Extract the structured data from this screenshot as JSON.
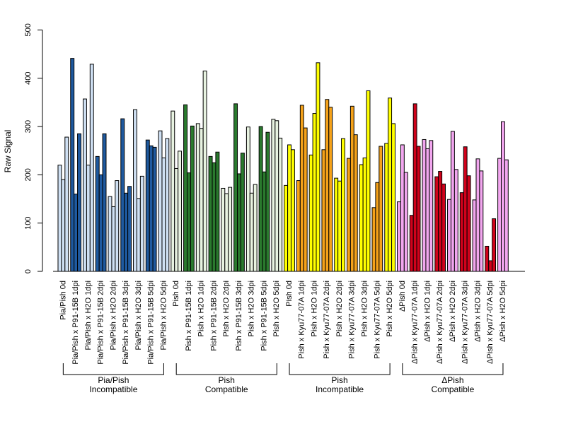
{
  "chart_data": {
    "type": "bar",
    "ylabel": "Raw Signal",
    "ylim": [
      0,
      500
    ],
    "yticks": [
      0,
      100,
      200,
      300,
      400,
      500
    ],
    "grid": false,
    "bar_outline": "#000000",
    "palette": {
      "light_blue": "#cfe0f3",
      "dark_blue": "#1f5aa0",
      "light_green": "#e8f3e1",
      "dark_green": "#2a7a2e",
      "yellow": "#ffff00",
      "orange": "#f5a21a",
      "pink": "#f2a6ef",
      "red": "#d0021b"
    },
    "categories": [
      {
        "label": "Pia/Pish 0d",
        "values": [
          220,
          190,
          278
        ],
        "colors": [
          "light_blue",
          "light_blue",
          "light_blue"
        ]
      },
      {
        "label": "Pia/Pish x P91-15B 1dpi",
        "values": [
          441,
          160,
          285
        ],
        "colors": [
          "dark_blue",
          "dark_blue",
          "dark_blue"
        ]
      },
      {
        "label": "Pia/Pish x H2O 1dpi",
        "values": [
          357,
          220,
          429
        ],
        "colors": [
          "light_blue",
          "light_blue",
          "light_blue"
        ]
      },
      {
        "label": "Pia/Pish x P91-15B 2dpi",
        "values": [
          238,
          200,
          285
        ],
        "colors": [
          "dark_blue",
          "dark_blue",
          "dark_blue"
        ]
      },
      {
        "label": "Pia/Pish x H2O 2dpi",
        "values": [
          155,
          134,
          188
        ],
        "colors": [
          "light_blue",
          "light_blue",
          "light_blue"
        ]
      },
      {
        "label": "Pia/Pish x P91-15B 3dpi",
        "values": [
          316,
          162,
          176
        ],
        "colors": [
          "dark_blue",
          "dark_blue",
          "dark_blue"
        ]
      },
      {
        "label": "Pia/Pish x H2O 3dpi",
        "values": [
          335,
          151,
          197
        ],
        "colors": [
          "light_blue",
          "light_blue",
          "light_blue"
        ]
      },
      {
        "label": "Pia/Pish x P91-15B 5dpi",
        "values": [
          272,
          260,
          257
        ],
        "colors": [
          "dark_blue",
          "dark_blue",
          "dark_blue"
        ]
      },
      {
        "label": "Pia/Pish x H2O 5dpi",
        "values": [
          291,
          235,
          275
        ],
        "colors": [
          "light_blue",
          "light_blue",
          "light_blue"
        ]
      },
      {
        "label": "Pish 0d",
        "values": [
          332,
          213,
          249
        ],
        "colors": [
          "light_green",
          "light_green",
          "light_green"
        ]
      },
      {
        "label": "Pish x P91-15B 1dpi",
        "values": [
          345,
          204,
          301
        ],
        "colors": [
          "dark_green",
          "dark_green",
          "dark_green"
        ]
      },
      {
        "label": "Pish x H2O 1dpi",
        "values": [
          306,
          296,
          415
        ],
        "colors": [
          "light_green",
          "light_green",
          "light_green"
        ]
      },
      {
        "label": "Pish x P91-15B 2dpi",
        "values": [
          238,
          225,
          247
        ],
        "colors": [
          "dark_green",
          "dark_green",
          "dark_green"
        ]
      },
      {
        "label": "Pish x H2O 2dpi",
        "values": [
          172,
          161,
          174
        ],
        "colors": [
          "light_green",
          "light_green",
          "light_green"
        ]
      },
      {
        "label": "Pish x P91-15B 3dpi",
        "values": [
          347,
          202,
          245
        ],
        "colors": [
          "dark_green",
          "dark_green",
          "dark_green"
        ]
      },
      {
        "label": "Pish x H2O 3dpi",
        "values": [
          299,
          162,
          180
        ],
        "colors": [
          "light_green",
          "light_green",
          "light_green"
        ]
      },
      {
        "label": "Pish x P91-15B 5dpi",
        "values": [
          300,
          206,
          288
        ],
        "colors": [
          "dark_green",
          "dark_green",
          "dark_green"
        ]
      },
      {
        "label": "Pish x H2O 5dpi",
        "values": [
          315,
          312,
          276
        ],
        "colors": [
          "light_green",
          "light_green",
          "light_green"
        ]
      },
      {
        "label": "Pish 0d",
        "values": [
          178,
          262,
          252
        ],
        "colors": [
          "yellow",
          "yellow",
          "yellow"
        ]
      },
      {
        "label": "Pish x Kyu77-07A 1dpi",
        "values": [
          188,
          344,
          297
        ],
        "colors": [
          "orange",
          "orange",
          "orange"
        ]
      },
      {
        "label": "Pish x H2O 1dpi",
        "values": [
          241,
          327,
          432
        ],
        "colors": [
          "yellow",
          "yellow",
          "yellow"
        ]
      },
      {
        "label": "Pish x Kyu77-07A 2dpi",
        "values": [
          252,
          356,
          340
        ],
        "colors": [
          "orange",
          "orange",
          "orange"
        ]
      },
      {
        "label": "Pish x H2O 2dpi",
        "values": [
          193,
          187,
          275
        ],
        "colors": [
          "yellow",
          "yellow",
          "yellow"
        ]
      },
      {
        "label": "Pish x Kyu77-07A 3dpi",
        "values": [
          234,
          342,
          283
        ],
        "colors": [
          "orange",
          "orange",
          "orange"
        ]
      },
      {
        "label": "Pish x H2O 3dpi",
        "values": [
          221,
          235,
          374
        ],
        "colors": [
          "yellow",
          "yellow",
          "yellow"
        ]
      },
      {
        "label": "Pish x Kyu77-07A 5dpi",
        "values": [
          132,
          184,
          259
        ],
        "colors": [
          "orange",
          "orange",
          "orange"
        ]
      },
      {
        "label": "Pish x H2O 5dpi",
        "values": [
          265,
          359,
          306
        ],
        "colors": [
          "yellow",
          "yellow",
          "yellow"
        ]
      },
      {
        "label": "ΔPish 0d",
        "values": [
          144,
          262,
          205
        ],
        "colors": [
          "pink",
          "pink",
          "pink"
        ]
      },
      {
        "label": "ΔPish x Kyu77-07A 1dpi",
        "values": [
          116,
          347,
          259
        ],
        "colors": [
          "red",
          "red",
          "red"
        ]
      },
      {
        "label": "ΔPish x H2O 1dpi",
        "values": [
          273,
          254,
          271
        ],
        "colors": [
          "pink",
          "pink",
          "pink"
        ]
      },
      {
        "label": "ΔPish x Kyu77-07A 2dpi",
        "values": [
          196,
          207,
          181
        ],
        "colors": [
          "red",
          "red",
          "red"
        ]
      },
      {
        "label": "ΔPish x H2O 2dpi",
        "values": [
          149,
          290,
          211
        ],
        "colors": [
          "pink",
          "pink",
          "pink"
        ]
      },
      {
        "label": "ΔPish x Kyu77-07A 3dpi",
        "values": [
          163,
          258,
          198
        ],
        "colors": [
          "red",
          "red",
          "red"
        ]
      },
      {
        "label": "ΔPish x H2O 3dpi",
        "values": [
          148,
          233,
          208
        ],
        "colors": [
          "pink",
          "pink",
          "pink"
        ]
      },
      {
        "label": "ΔPish x Kyu77-07A 5dpi",
        "values": [
          52,
          22,
          109
        ],
        "colors": [
          "red",
          "red",
          "red"
        ]
      },
      {
        "label": "ΔPish x H2O 5dpi",
        "values": [
          234,
          310,
          231
        ],
        "colors": [
          "pink",
          "pink",
          "pink"
        ]
      }
    ],
    "groups": [
      {
        "line1": "Pia/Pish",
        "line2": "Incompatible",
        "start": 0,
        "end": 8
      },
      {
        "line1": "Pish",
        "line2": "Compatible",
        "start": 9,
        "end": 17
      },
      {
        "line1": "Pish",
        "line2": "Incompatible",
        "start": 18,
        "end": 26
      },
      {
        "line1": "ΔPish",
        "line2": "Compatible",
        "start": 27,
        "end": 35
      }
    ]
  }
}
